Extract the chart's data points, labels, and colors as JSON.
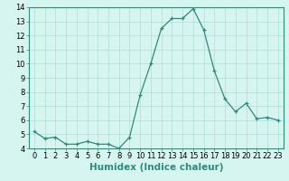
{
  "x": [
    0,
    1,
    2,
    3,
    4,
    5,
    6,
    7,
    8,
    9,
    10,
    11,
    12,
    13,
    14,
    15,
    16,
    17,
    18,
    19,
    20,
    21,
    22,
    23
  ],
  "y": [
    5.2,
    4.7,
    4.8,
    4.3,
    4.3,
    4.5,
    4.3,
    4.3,
    4.0,
    4.8,
    7.8,
    10.0,
    12.5,
    13.2,
    13.2,
    13.9,
    12.4,
    9.5,
    7.5,
    6.6,
    7.2,
    6.1,
    6.2,
    6.0
  ],
  "xlabel": "Humidex (Indice chaleur)",
  "ylim": [
    4,
    14
  ],
  "xlim": [
    -0.5,
    23.5
  ],
  "yticks": [
    4,
    5,
    6,
    7,
    8,
    9,
    10,
    11,
    12,
    13,
    14
  ],
  "xticks": [
    0,
    1,
    2,
    3,
    4,
    5,
    6,
    7,
    8,
    9,
    10,
    11,
    12,
    13,
    14,
    15,
    16,
    17,
    18,
    19,
    20,
    21,
    22,
    23
  ],
  "line_color": "#2e8b7a",
  "marker": "+",
  "marker_color": "#2e8b7a",
  "bg_color": "#d6f5f0",
  "grid_color": "#b0ddd8",
  "tick_label_fontsize": 6.0,
  "xlabel_fontsize": 7.5
}
